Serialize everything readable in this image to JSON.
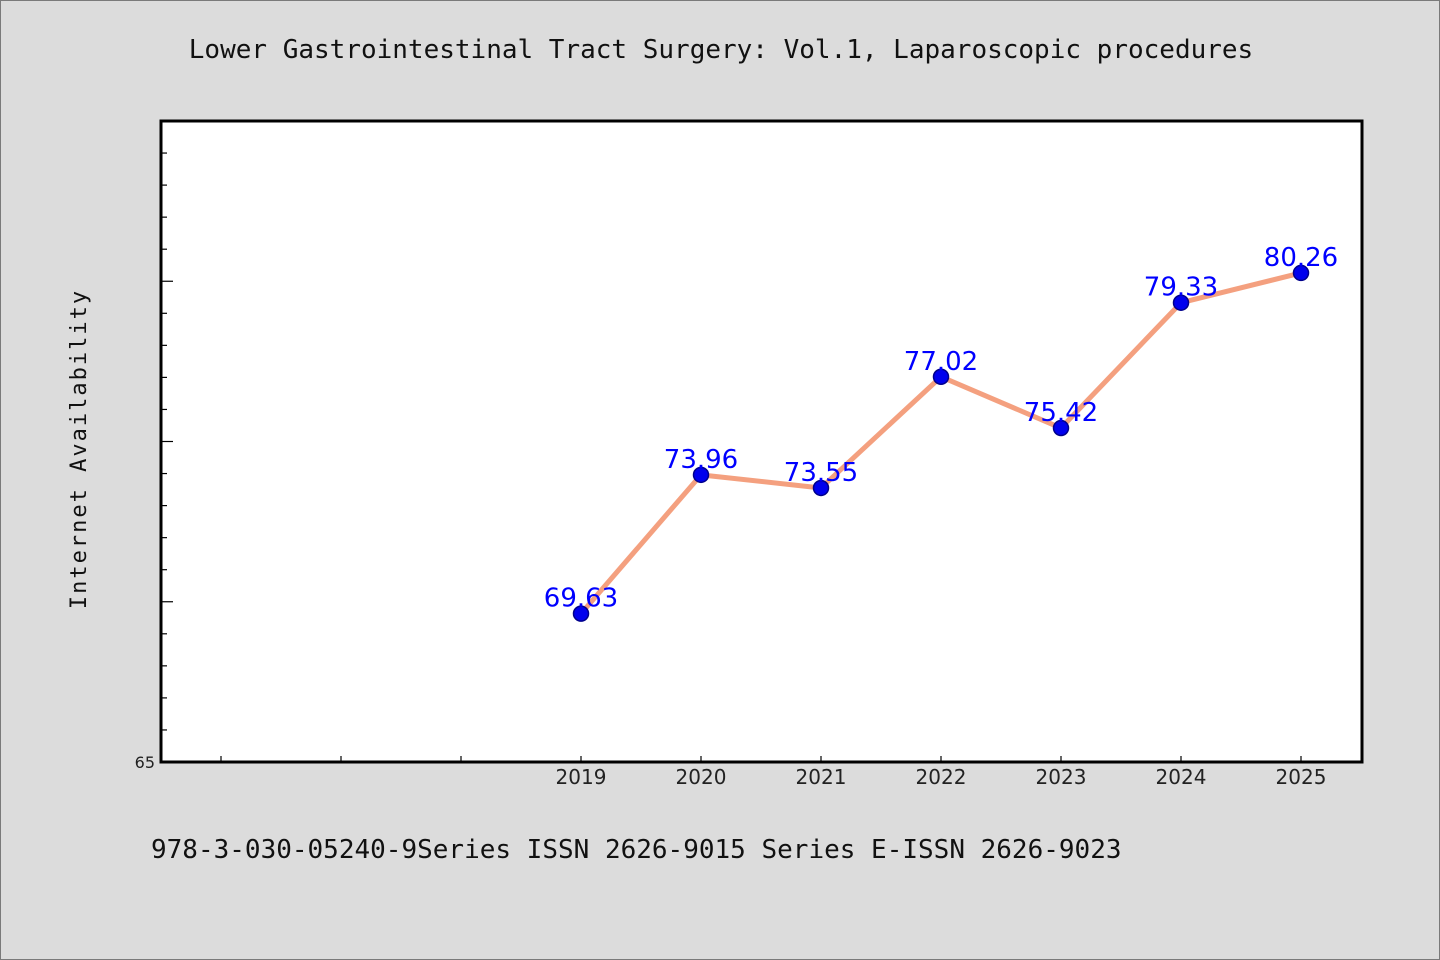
{
  "chart_data": {
    "type": "line",
    "title": "Lower Gastrointestinal Tract Surgery: Vol.1, Laparoscopic procedures",
    "ylabel": "Internet Availability",
    "xlabel": "",
    "x": [
      "2019",
      "2020",
      "2021",
      "2022",
      "2023",
      "2024",
      "2025"
    ],
    "x_slots_before_data": 3,
    "series": [
      {
        "values": [
          69.63,
          73.96,
          73.55,
          77.02,
          75.42,
          79.33,
          80.26
        ],
        "labels": [
          "69.63",
          "73.96",
          "73.55",
          "77.02",
          "75.42",
          "79.33",
          "80.26"
        ]
      }
    ],
    "yticks": [
      "65"
    ],
    "ylim": [
      65,
      85
    ],
    "grid": false,
    "legend": "none",
    "colors": {
      "line": "#f4a07f",
      "marker": "#0000ee",
      "marker_edge": "#00008b",
      "label": "#0000ff",
      "plot_bg": "#ffffff",
      "page_bg": "#dcdcdc"
    }
  },
  "footer": {
    "text": "978-3-030-05240-9Series ISSN 2626-9015 Series E-ISSN 2626-9023"
  }
}
